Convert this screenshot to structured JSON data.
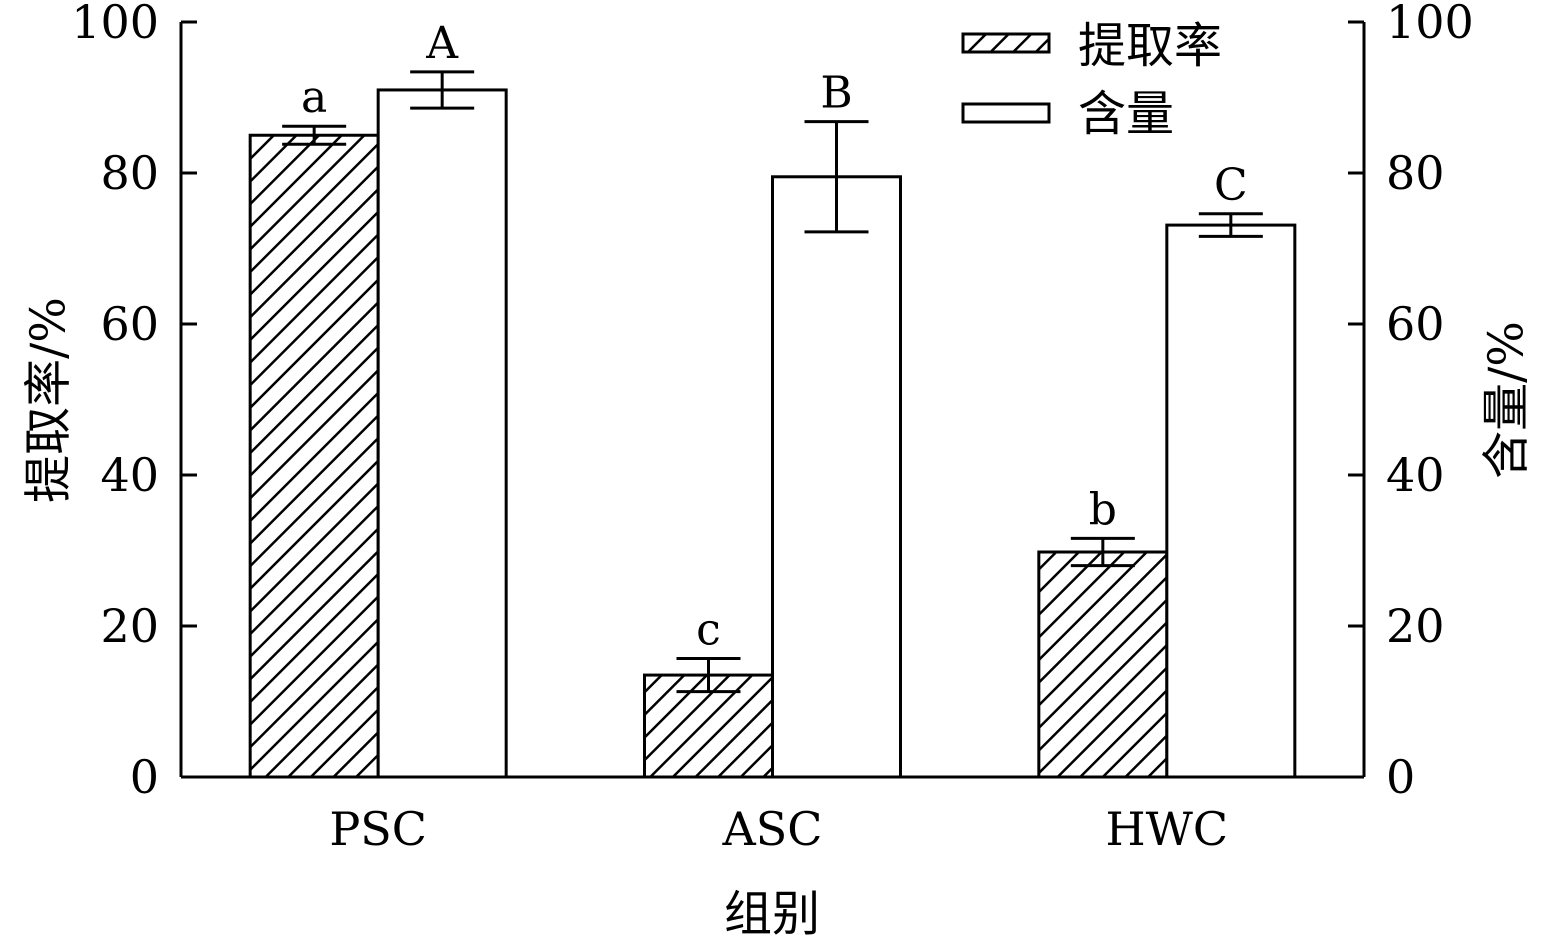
{
  "chart_data": {
    "type": "bar",
    "categories": [
      "PSC",
      "ASC",
      "HWC"
    ],
    "series": [
      {
        "name": "提取率",
        "axis": "left",
        "pattern": "hatched",
        "values": [
          85,
          13.5,
          29.8
        ],
        "errors": [
          1.2,
          2.2,
          1.8
        ],
        "significance": [
          "a",
          "c",
          "b"
        ]
      },
      {
        "name": "含量",
        "axis": "right",
        "pattern": "open",
        "values": [
          91,
          79.5,
          73.1
        ],
        "errors": [
          2.4,
          7.3,
          1.5
        ],
        "significance": [
          "A",
          "B",
          "C"
        ]
      }
    ],
    "xlabel": "组别",
    "ylabel": "提取率/%",
    "y2label": "含量/%",
    "ylim": [
      0,
      100
    ],
    "y2lim": [
      0,
      100
    ],
    "yticks": [
      "0",
      "20",
      "40",
      "60",
      "80",
      "100"
    ],
    "y2ticks": [
      "0",
      "20",
      "40",
      "60",
      "80",
      "100"
    ],
    "legend_position": "top-right",
    "grid": false,
    "colors": {
      "stroke": "#000000",
      "fill": "#ffffff"
    }
  }
}
